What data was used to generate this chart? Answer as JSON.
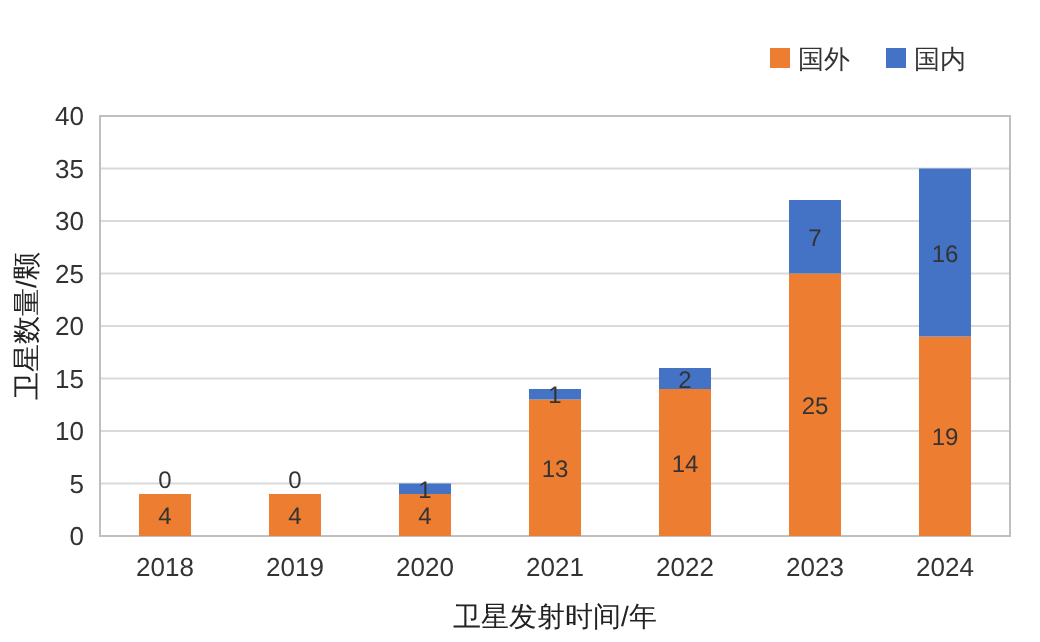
{
  "chart_data": {
    "type": "bar",
    "stacked": true,
    "xlabel": "卫星发射时间/年",
    "ylabel": "卫星数量/颗",
    "categories": [
      "2018",
      "2019",
      "2020",
      "2021",
      "2022",
      "2023",
      "2024"
    ],
    "series": [
      {
        "name": "国外",
        "color": "#ed7d31",
        "values": [
          4,
          4,
          4,
          13,
          14,
          25,
          19
        ]
      },
      {
        "name": "国内",
        "color": "#4472c4",
        "values": [
          0,
          0,
          1,
          1,
          2,
          7,
          16
        ]
      }
    ],
    "data_labels": true,
    "ylim": [
      0,
      40
    ],
    "yticks": [
      0,
      5,
      10,
      15,
      20,
      25,
      30,
      35,
      40
    ],
    "grid": "y",
    "legend": "top right"
  }
}
